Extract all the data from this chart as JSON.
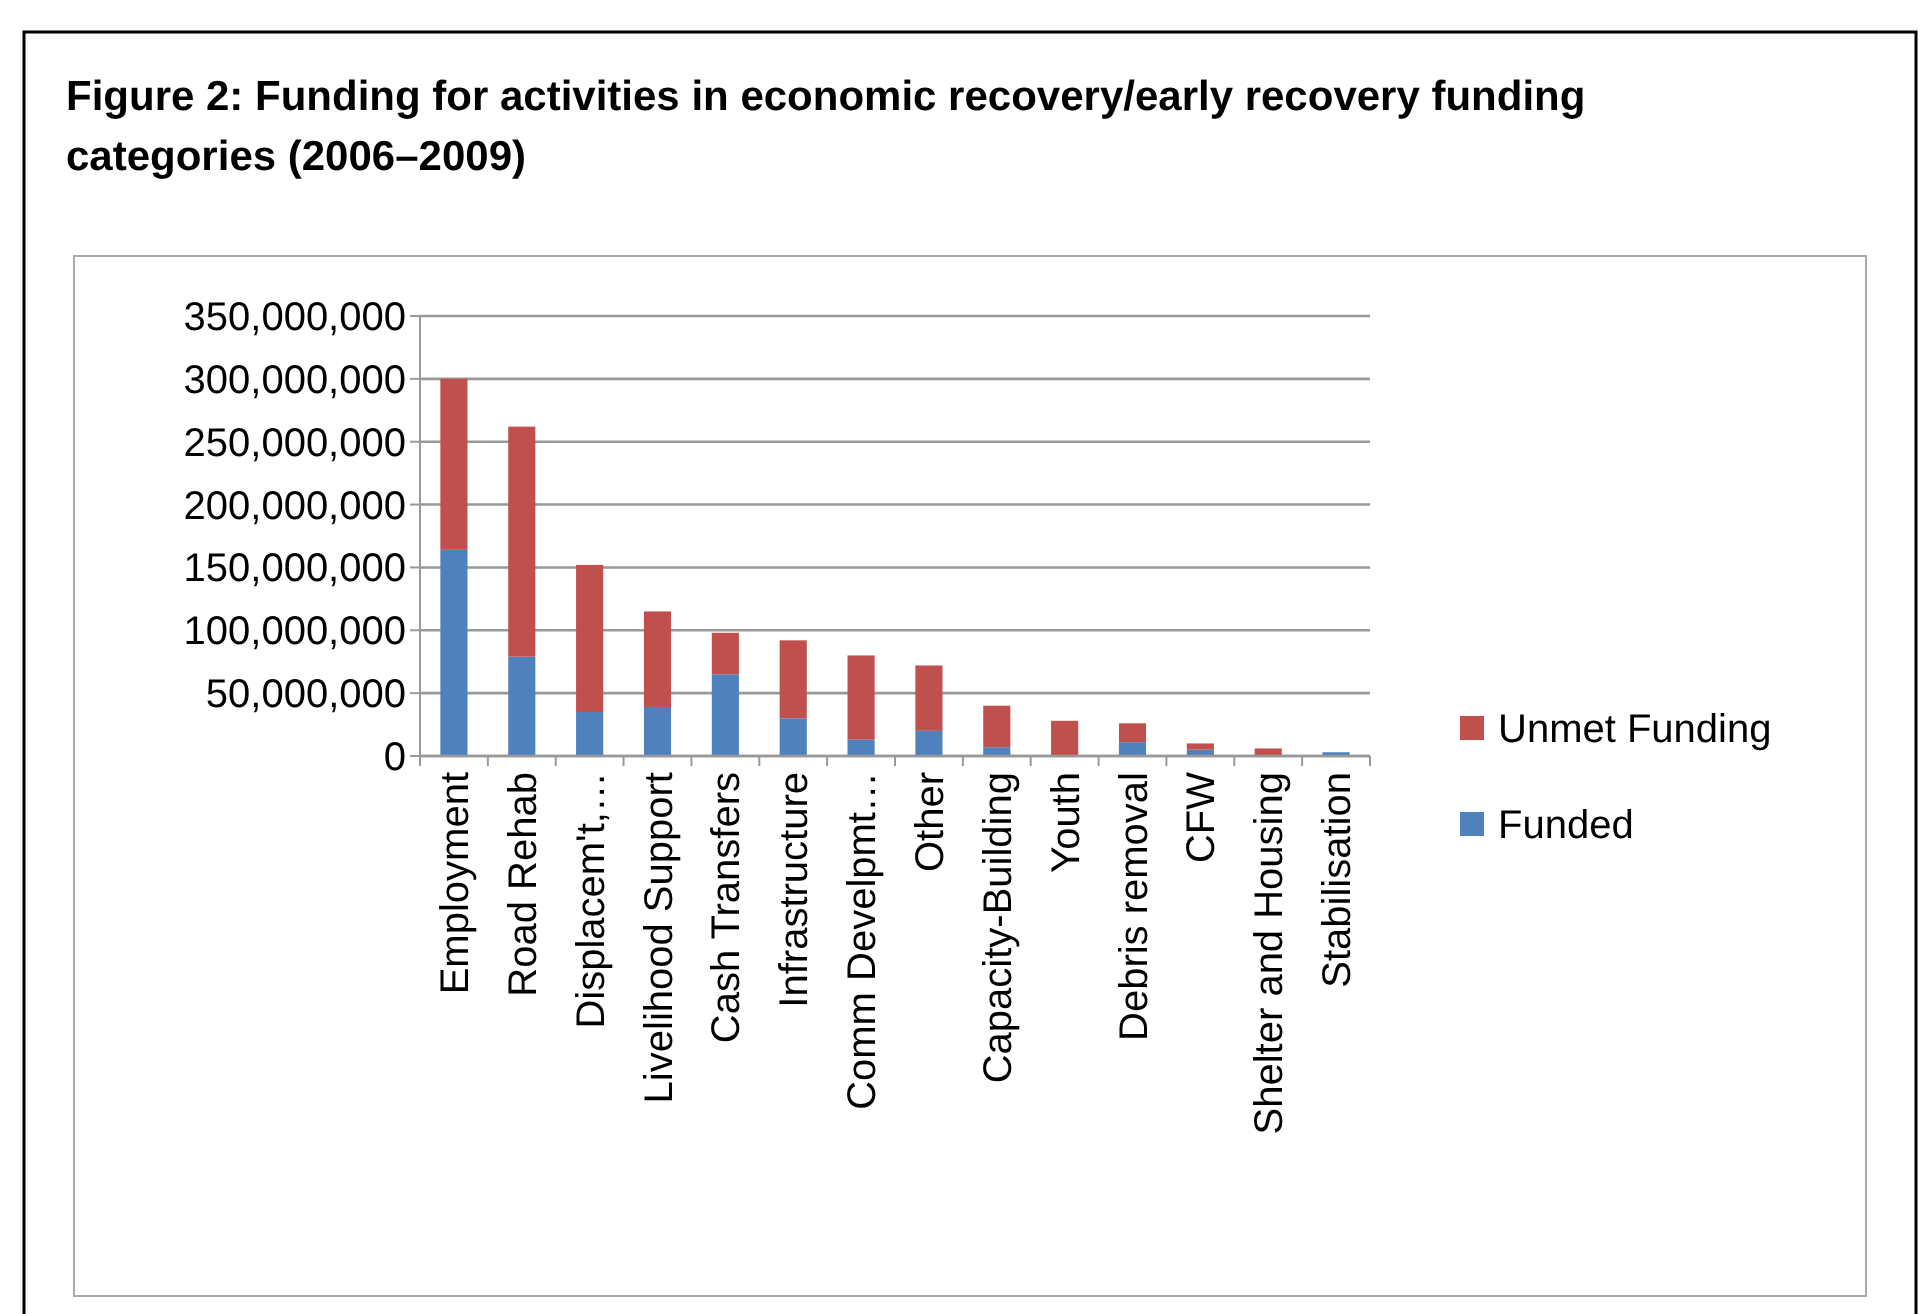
{
  "chart_data": {
    "type": "bar",
    "title": "Figure 2: Funding for activities in economic recovery/early recovery funding categories (2006–2009)",
    "categories": [
      "Employment",
      "Road Rehab",
      "Displacem't,…",
      "Livelihood Support",
      "Cash Transfers",
      "Infrastructure",
      "Comm Develpmt…",
      "Other",
      "Capacity-Building",
      "Youth",
      "Debris removal",
      "CFW",
      "Shelter and Housing",
      "Stabilisation"
    ],
    "series": [
      {
        "name": "Funded",
        "color": "#4f81bd",
        "values": [
          164000000,
          79000000,
          35000000,
          39000000,
          65000000,
          30000000,
          13000000,
          20000000,
          7000000,
          0,
          11000000,
          5000000,
          0,
          3000000
        ]
      },
      {
        "name": "Unmet Funding",
        "color": "#c0504d",
        "values": [
          136000000,
          183000000,
          117000000,
          76000000,
          33000000,
          62000000,
          67000000,
          52000000,
          33000000,
          28000000,
          15000000,
          5000000,
          6000000,
          0
        ]
      }
    ],
    "stacked": true,
    "ylim": [
      0,
      350000000
    ],
    "yticks": [
      {
        "value": 0,
        "label": "0"
      },
      {
        "value": 50000000,
        "label": "50,000,000"
      },
      {
        "value": 100000000,
        "label": "100,000,000"
      },
      {
        "value": 150000000,
        "label": "150,000,000"
      },
      {
        "value": 200000000,
        "label": "200,000,000"
      },
      {
        "value": 250000000,
        "label": "250,000,000"
      },
      {
        "value": 300000000,
        "label": "300,000,000"
      },
      {
        "value": 350000000,
        "label": "350,000,000"
      }
    ],
    "grid": "y",
    "legend": "right"
  }
}
